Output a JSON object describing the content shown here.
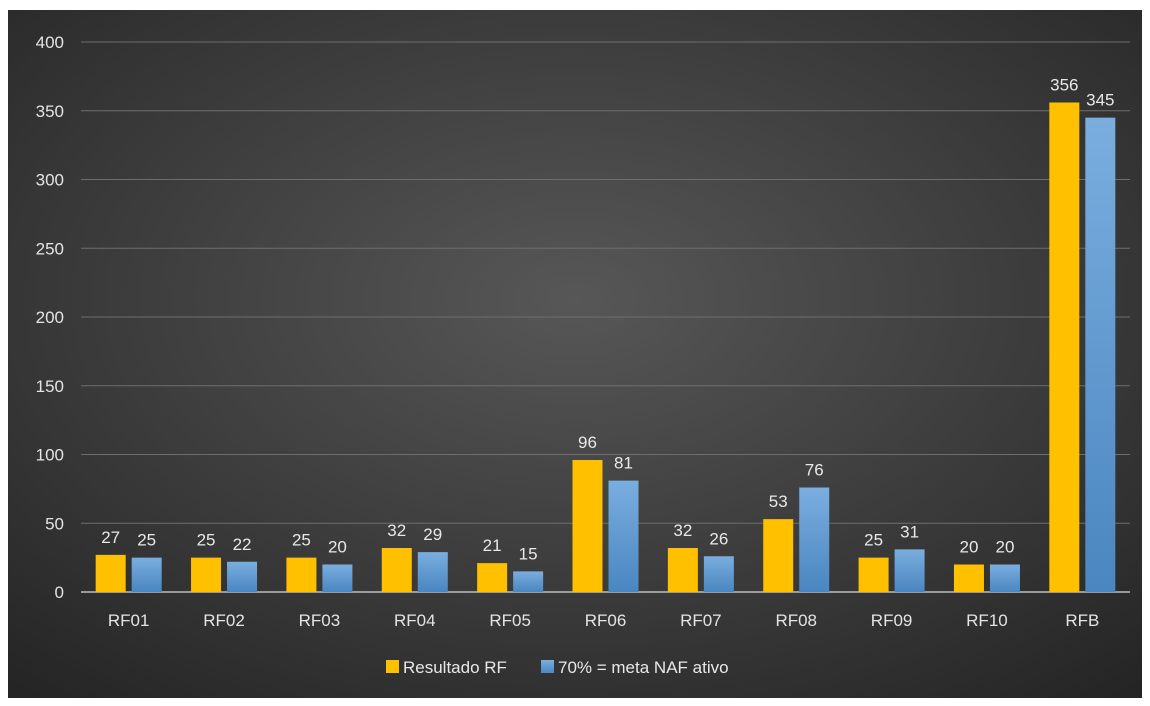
{
  "chart_data": {
    "type": "bar",
    "title": "",
    "xlabel": "",
    "ylabel": "",
    "ylim": [
      0,
      400
    ],
    "yticks": [
      0,
      50,
      100,
      150,
      200,
      250,
      300,
      350,
      400
    ],
    "grid": true,
    "legend_position": "bottom",
    "categories": [
      "RF01",
      "RF02",
      "RF03",
      "RF04",
      "RF05",
      "RF06",
      "RF07",
      "RF08",
      "RF09",
      "RF10",
      "RFB"
    ],
    "series": [
      {
        "name": "Resultado RF",
        "color": "#FFC000",
        "values": [
          27,
          25,
          25,
          32,
          21,
          96,
          32,
          53,
          25,
          20,
          356
        ]
      },
      {
        "name": "70% = meta NAF ativo",
        "color": "#5B9BD5",
        "values": [
          25,
          22,
          20,
          29,
          15,
          81,
          26,
          76,
          31,
          20,
          345
        ]
      }
    ]
  }
}
